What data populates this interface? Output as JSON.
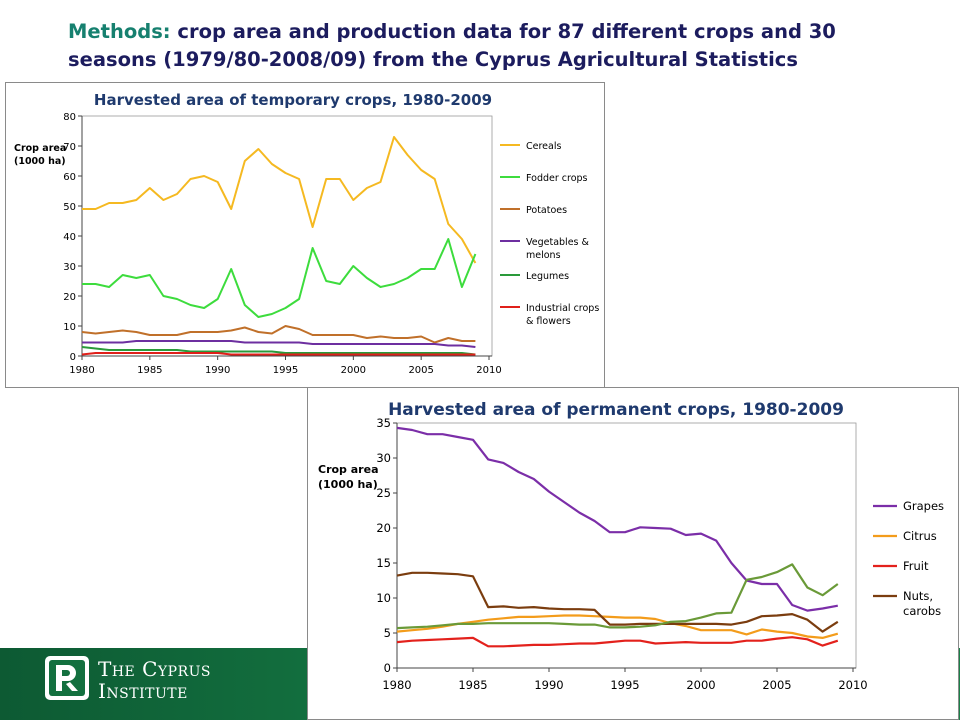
{
  "heading": {
    "label": "Methods:",
    "line1": "crop area and production data for 87 different crops and 30",
    "line2": "seasons (1979/80-2008/09) from the Cyprus Agricultural Statistics"
  },
  "footer": {
    "org_line1": "The Cyprus",
    "org_line2": "Institute"
  },
  "chart_data": [
    {
      "type": "line",
      "title": "Harvested area of temporary crops, 1980-2009",
      "ylabel_lines": [
        "Crop area",
        "(1000 ha)"
      ],
      "xlabel": "",
      "xlim": [
        1980,
        2010
      ],
      "ylim": [
        0,
        80
      ],
      "xticks": [
        1980,
        1985,
        1990,
        1995,
        2000,
        2005,
        2010
      ],
      "yticks": [
        0,
        10,
        20,
        30,
        40,
        50,
        60,
        70,
        80
      ],
      "grid": false,
      "legend_position": "right",
      "x": [
        1980,
        1981,
        1982,
        1983,
        1984,
        1985,
        1986,
        1987,
        1988,
        1989,
        1990,
        1991,
        1992,
        1993,
        1994,
        1995,
        1996,
        1997,
        1998,
        1999,
        2000,
        2001,
        2002,
        2003,
        2004,
        2005,
        2006,
        2007,
        2008,
        2009
      ],
      "series": [
        {
          "name": "Cereals",
          "color": "#f5b921",
          "values": [
            49,
            49,
            51,
            51,
            52,
            56,
            52,
            54,
            59,
            60,
            58,
            49,
            65,
            69,
            64,
            61,
            59,
            43,
            59,
            59,
            52,
            56,
            58,
            73,
            67,
            62,
            59,
            44,
            39,
            31
          ]
        },
        {
          "name": "Fodder crops",
          "color": "#3ddc3d",
          "values": [
            24,
            24,
            23,
            27,
            26,
            27,
            20,
            19,
            17,
            16,
            19,
            29,
            17,
            13,
            14,
            16,
            19,
            36,
            25,
            24,
            30,
            26,
            23,
            24,
            26,
            29,
            29,
            39,
            23,
            34
          ]
        },
        {
          "name": "Potatoes",
          "color": "#c0702a",
          "values": [
            8,
            7.5,
            8,
            8.5,
            8,
            7,
            7,
            7,
            8,
            8,
            8,
            8.5,
            9.5,
            8,
            7.5,
            10,
            9,
            7,
            7,
            7,
            7,
            6,
            6.5,
            6,
            6,
            6.5,
            4.5,
            6,
            5,
            5
          ]
        },
        {
          "name": "Vegetables & melons",
          "color": "#6d2fa0",
          "values": [
            4.5,
            4.5,
            4.5,
            4.5,
            5,
            5,
            5,
            5,
            5,
            5,
            5,
            5,
            4.5,
            4.5,
            4.5,
            4.5,
            4.5,
            4,
            4,
            4,
            4,
            4,
            4,
            4,
            4,
            4,
            4,
            3.5,
            3.5,
            3
          ]
        },
        {
          "name": "Legumes",
          "color": "#2a9a3a",
          "values": [
            3,
            2.5,
            2,
            2,
            2,
            2,
            2,
            2,
            1.5,
            1.5,
            1.5,
            1.5,
            1.5,
            1.5,
            1.5,
            1,
            1,
            1,
            1,
            1,
            1,
            1,
            1,
            1,
            1,
            1,
            1,
            1,
            1,
            0.5
          ]
        },
        {
          "name": "Industrial crops & flowers",
          "color": "#e0201a",
          "values": [
            0.5,
            1,
            1,
            1,
            1,
            1,
            1,
            1,
            1,
            1,
            1,
            0.5,
            0.5,
            0.5,
            0.5,
            0.5,
            0.5,
            0.5,
            0.5,
            0.5,
            0.5,
            0.5,
            0.5,
            0.5,
            0.5,
            0.5,
            0.5,
            0.5,
            0.5,
            0.5
          ]
        }
      ]
    },
    {
      "type": "line",
      "title": "Harvested area of permanent crops, 1980-2009",
      "ylabel_lines": [
        "Crop area",
        "(1000 ha)"
      ],
      "xlabel": "",
      "xlim": [
        1980,
        2010
      ],
      "ylim": [
        0,
        35
      ],
      "xticks": [
        1980,
        1985,
        1990,
        1995,
        2000,
        2005,
        2010
      ],
      "yticks": [
        0,
        5,
        10,
        15,
        20,
        25,
        30,
        35
      ],
      "grid": false,
      "legend_position": "right",
      "x": [
        1980,
        1981,
        1982,
        1983,
        1984,
        1985,
        1986,
        1987,
        1988,
        1989,
        1990,
        1991,
        1992,
        1993,
        1994,
        1995,
        1996,
        1997,
        1998,
        1999,
        2000,
        2001,
        2002,
        2003,
        2004,
        2005,
        2006,
        2007,
        2008,
        2009
      ],
      "series": [
        {
          "name": "Grapes",
          "color": "#7b2ea8",
          "values": [
            34.3,
            34,
            33.4,
            33.4,
            33,
            32.6,
            29.8,
            29.3,
            28,
            27,
            25.2,
            23.7,
            22.2,
            21,
            19.4,
            19.4,
            20.1,
            20,
            19.9,
            19,
            19.2,
            18.2,
            15,
            12.5,
            12,
            12,
            9,
            8.2,
            8.5,
            8.9
          ]
        },
        {
          "name": "Citrus",
          "color": "#f39c1b",
          "values": [
            5.2,
            5.4,
            5.6,
            5.9,
            6.3,
            6.6,
            6.9,
            7.1,
            7.3,
            7.3,
            7.4,
            7.5,
            7.5,
            7.4,
            7.3,
            7.2,
            7.2,
            7,
            6.4,
            6,
            5.4,
            5.4,
            5.4,
            4.8,
            5.5,
            5.2,
            5,
            4.5,
            4.3,
            4.9
          ]
        },
        {
          "name": "Fruit",
          "color": "#e3211c",
          "values": [
            3.7,
            3.9,
            4,
            4.1,
            4.2,
            4.3,
            3.1,
            3.1,
            3.2,
            3.3,
            3.3,
            3.4,
            3.5,
            3.5,
            3.7,
            3.9,
            3.9,
            3.5,
            3.6,
            3.7,
            3.6,
            3.6,
            3.6,
            3.9,
            3.9,
            4.2,
            4.4,
            4.1,
            3.2,
            3.9
          ]
        },
        {
          "name": "Nuts, carobs",
          "color": "#7b3d0f",
          "values": [
            13.2,
            13.6,
            13.6,
            13.5,
            13.4,
            13.1,
            8.7,
            8.8,
            8.6,
            8.7,
            8.5,
            8.4,
            8.4,
            8.3,
            6.2,
            6.2,
            6.3,
            6.3,
            6.3,
            6.3,
            6.3,
            6.3,
            6.2,
            6.6,
            7.4,
            7.5,
            7.7,
            6.9,
            5.2,
            6.6
          ]
        },
        {
          "name": "",
          "color": "#6a9a38",
          "values": [
            5.7,
            5.8,
            5.9,
            6.1,
            6.3,
            6.3,
            6.4,
            6.4,
            6.4,
            6.4,
            6.4,
            6.3,
            6.2,
            6.2,
            5.8,
            5.8,
            5.9,
            6.1,
            6.6,
            6.7,
            7.2,
            7.8,
            7.9,
            12.6,
            13,
            13.7,
            14.8,
            11.5,
            10.4,
            12
          ]
        }
      ]
    }
  ]
}
